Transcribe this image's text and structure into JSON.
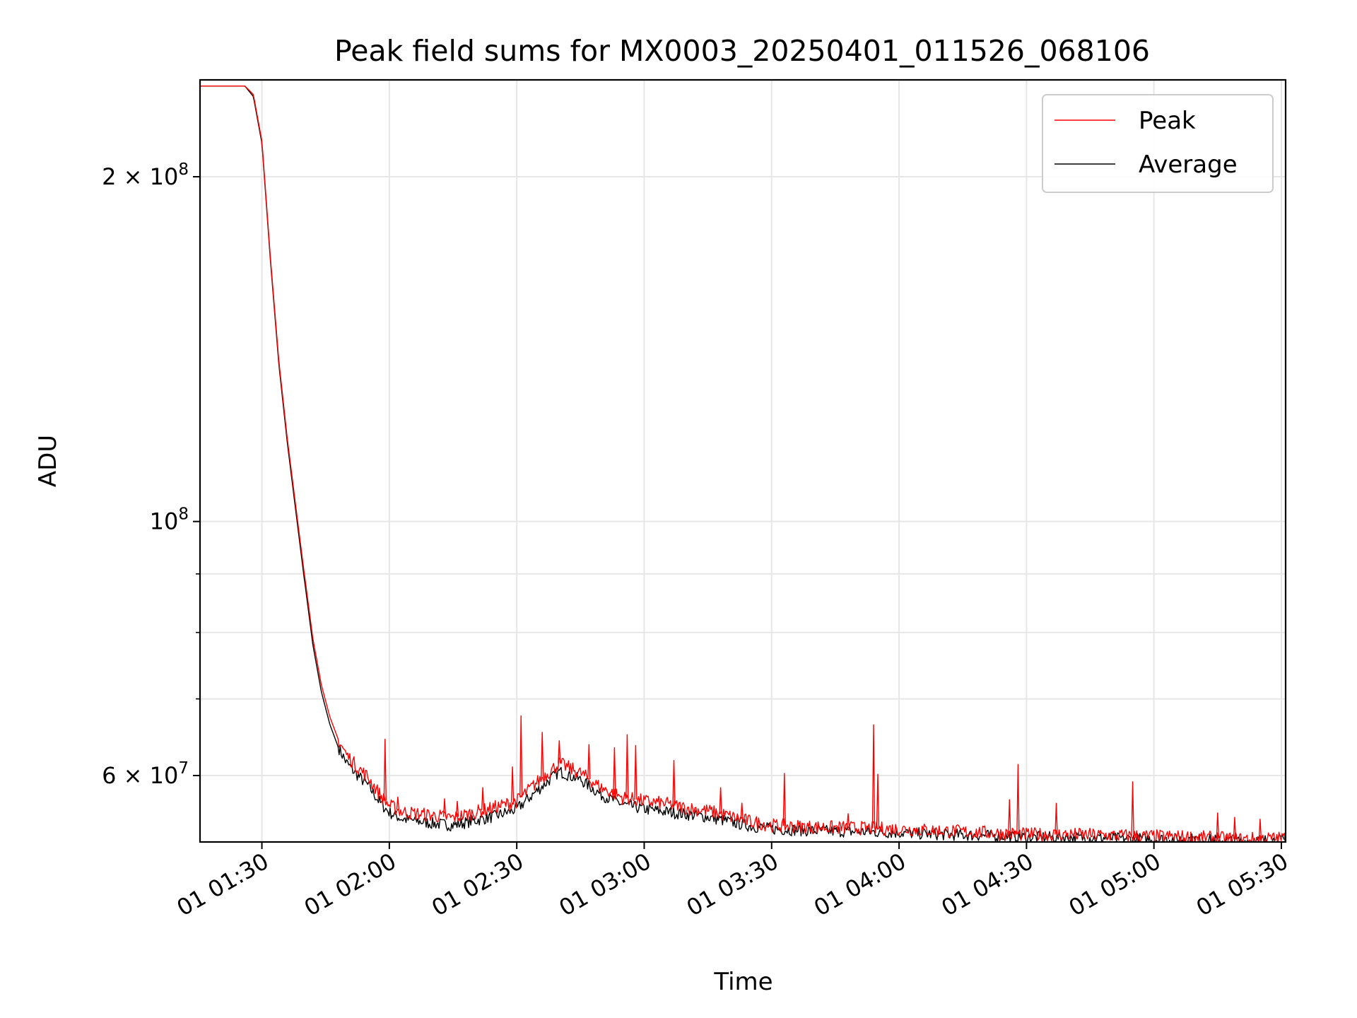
{
  "chart_data": {
    "type": "line",
    "title": "Peak field sums for MX0003_20250401_011526_068106",
    "xlabel": "Time",
    "ylabel": "ADU",
    "yscale": "log",
    "grid": true,
    "legend_position": "top-right",
    "xlim": [
      "2025-04-01 01:15:26",
      "2025-04-01 05:31:00"
    ],
    "ylim": [
      52500000,
      243000000
    ],
    "x_ticks": [
      {
        "value": "2025-04-01 01:30",
        "label": "01 01:30"
      },
      {
        "value": "2025-04-01 02:00",
        "label": "01 02:00"
      },
      {
        "value": "2025-04-01 02:30",
        "label": "01 02:30"
      },
      {
        "value": "2025-04-01 03:00",
        "label": "01 03:00"
      },
      {
        "value": "2025-04-01 03:30",
        "label": "01 03:30"
      },
      {
        "value": "2025-04-01 04:00",
        "label": "01 04:00"
      },
      {
        "value": "2025-04-01 04:30",
        "label": "01 04:30"
      },
      {
        "value": "2025-04-01 05:00",
        "label": "01 05:00"
      },
      {
        "value": "2025-04-01 05:30",
        "label": "01 05:30"
      }
    ],
    "y_major_ticks": [
      {
        "value": 60000000,
        "mantissa": "6",
        "exponent": "7"
      },
      {
        "value": 100000000,
        "mantissa": "",
        "exponent": "8"
      },
      {
        "value": 200000000,
        "mantissa": "2",
        "exponent": "8"
      }
    ],
    "y_minor_ticks": [
      70000000,
      80000000,
      90000000
    ],
    "series": [
      {
        "name": "Peak",
        "color": "#ff0000",
        "x": [
          "2025-04-01 01:15:26",
          "2025-04-01 01:26:00",
          "2025-04-01 01:28:00",
          "2025-04-01 01:30:00",
          "2025-04-01 01:32:00",
          "2025-04-01 01:34:00",
          "2025-04-01 01:36:00",
          "2025-04-01 01:38:00",
          "2025-04-01 01:40:00",
          "2025-04-01 01:42:00",
          "2025-04-01 01:44:00",
          "2025-04-01 01:46:00",
          "2025-04-01 01:48:00",
          "2025-04-01 01:50:00",
          "2025-04-01 01:52:00",
          "2025-04-01 01:55:00",
          "2025-04-01 01:58:00",
          "2025-04-01 02:00:00",
          "2025-04-01 02:03:00",
          "2025-04-01 02:06:00",
          "2025-04-01 02:10:00",
          "2025-04-01 02:15:00",
          "2025-04-01 02:20:00",
          "2025-04-01 02:25:00",
          "2025-04-01 02:30:00",
          "2025-04-01 02:35:00",
          "2025-04-01 02:40:00",
          "2025-04-01 02:45:00",
          "2025-04-01 02:50:00",
          "2025-04-01 02:55:00",
          "2025-04-01 03:00:00",
          "2025-04-01 03:05:00",
          "2025-04-01 03:10:00",
          "2025-04-01 03:15:00",
          "2025-04-01 03:20:00",
          "2025-04-01 03:25:00",
          "2025-04-01 03:30:00",
          "2025-04-01 03:40:00",
          "2025-04-01 03:50:00",
          "2025-04-01 04:00:00",
          "2025-04-01 04:10:00",
          "2025-04-01 04:20:00",
          "2025-04-01 04:30:00",
          "2025-04-01 04:40:00",
          "2025-04-01 04:50:00",
          "2025-04-01 05:00:00",
          "2025-04-01 05:10:00",
          "2025-04-01 05:20:00",
          "2025-04-01 05:31:00"
        ],
        "y": [
          240000000,
          240000000,
          236000000,
          215000000,
          170000000,
          138000000,
          118000000,
          103000000,
          90000000,
          79000000,
          72000000,
          67500000,
          64500000,
          62500000,
          61300000,
          59800000,
          57600000,
          56500000,
          55800000,
          55600000,
          55400000,
          55100000,
          55700000,
          56300000,
          57000000,
          59300000,
          61500000,
          60300000,
          58500000,
          57400000,
          57000000,
          56700000,
          56200000,
          55900000,
          55300000,
          54700000,
          54300000,
          54100000,
          54000000,
          53900000,
          53700000,
          53500000,
          53300000,
          53300000,
          53200000,
          53100000,
          53000000,
          52800000,
          52900000
        ],
        "spikes": [
          {
            "x": "2025-04-01 01:59:00",
            "y": 64600000
          },
          {
            "x": "2025-04-01 02:02:00",
            "y": 57500000
          },
          {
            "x": "2025-04-01 02:13:00",
            "y": 57300000
          },
          {
            "x": "2025-04-01 02:16:00",
            "y": 57000000
          },
          {
            "x": "2025-04-01 02:22:00",
            "y": 58600000
          },
          {
            "x": "2025-04-01 02:29:00",
            "y": 61100000
          },
          {
            "x": "2025-04-01 02:31:00",
            "y": 67700000
          },
          {
            "x": "2025-04-01 02:36:00",
            "y": 65500000
          },
          {
            "x": "2025-04-01 02:40:00",
            "y": 64400000
          },
          {
            "x": "2025-04-01 02:47:00",
            "y": 63900000
          },
          {
            "x": "2025-04-01 02:53:00",
            "y": 63500000
          },
          {
            "x": "2025-04-01 02:56:00",
            "y": 65200000
          },
          {
            "x": "2025-04-01 02:58:00",
            "y": 63800000
          },
          {
            "x": "2025-04-01 03:07:00",
            "y": 61900000
          },
          {
            "x": "2025-04-01 03:18:00",
            "y": 58600000
          },
          {
            "x": "2025-04-01 03:23:00",
            "y": 56800000
          },
          {
            "x": "2025-04-01 03:33:00",
            "y": 60300000
          },
          {
            "x": "2025-04-01 03:48:00",
            "y": 55600000
          },
          {
            "x": "2025-04-01 03:54:00",
            "y": 66500000
          },
          {
            "x": "2025-04-01 03:55:00",
            "y": 60200000
          },
          {
            "x": "2025-04-01 04:26:00",
            "y": 57200000
          },
          {
            "x": "2025-04-01 04:28:00",
            "y": 61400000
          },
          {
            "x": "2025-04-01 04:37:00",
            "y": 56800000
          },
          {
            "x": "2025-04-01 04:55:00",
            "y": 59300000
          },
          {
            "x": "2025-04-01 05:15:00",
            "y": 55700000
          },
          {
            "x": "2025-04-01 05:19:00",
            "y": 55200000
          },
          {
            "x": "2025-04-01 05:25:00",
            "y": 55000000
          }
        ]
      },
      {
        "name": "Average",
        "color": "#000000",
        "x": [
          "2025-04-01 01:15:26",
          "2025-04-01 01:26:00",
          "2025-04-01 01:28:00",
          "2025-04-01 01:30:00",
          "2025-04-01 01:32:00",
          "2025-04-01 01:34:00",
          "2025-04-01 01:36:00",
          "2025-04-01 01:38:00",
          "2025-04-01 01:40:00",
          "2025-04-01 01:42:00",
          "2025-04-01 01:44:00",
          "2025-04-01 01:46:00",
          "2025-04-01 01:48:00",
          "2025-04-01 01:50:00",
          "2025-04-01 01:52:00",
          "2025-04-01 01:55:00",
          "2025-04-01 01:58:00",
          "2025-04-01 02:00:00",
          "2025-04-01 02:03:00",
          "2025-04-01 02:06:00",
          "2025-04-01 02:10:00",
          "2025-04-01 02:15:00",
          "2025-04-01 02:20:00",
          "2025-04-01 02:25:00",
          "2025-04-01 02:30:00",
          "2025-04-01 02:35:00",
          "2025-04-01 02:40:00",
          "2025-04-01 02:45:00",
          "2025-04-01 02:50:00",
          "2025-04-01 02:55:00",
          "2025-04-01 03:00:00",
          "2025-04-01 03:05:00",
          "2025-04-01 03:10:00",
          "2025-04-01 03:15:00",
          "2025-04-01 03:20:00",
          "2025-04-01 03:25:00",
          "2025-04-01 03:30:00",
          "2025-04-01 03:40:00",
          "2025-04-01 03:50:00",
          "2025-04-01 04:00:00",
          "2025-04-01 04:10:00",
          "2025-04-01 04:20:00",
          "2025-04-01 04:30:00",
          "2025-04-01 04:40:00",
          "2025-04-01 04:50:00",
          "2025-04-01 05:00:00",
          "2025-04-01 05:10:00",
          "2025-04-01 05:20:00",
          "2025-04-01 05:31:00"
        ],
        "y": [
          240000000,
          240000000,
          235000000,
          214000000,
          169000000,
          137000000,
          117000000,
          102000000,
          89000000,
          78000000,
          71000000,
          66500000,
          63500000,
          61500000,
          60300000,
          58800000,
          56700000,
          55700000,
          55000000,
          54800000,
          54500000,
          54300000,
          54800000,
          55300000,
          56100000,
          58300000,
          60500000,
          59500000,
          57700000,
          56600000,
          56100000,
          55800000,
          55500000,
          55200000,
          54700000,
          54200000,
          53900000,
          53700000,
          53600000,
          53500000,
          53300000,
          53200000,
          53000000,
          53000000,
          52900000,
          52800000,
          52800000,
          52600000,
          52700000
        ]
      }
    ]
  }
}
